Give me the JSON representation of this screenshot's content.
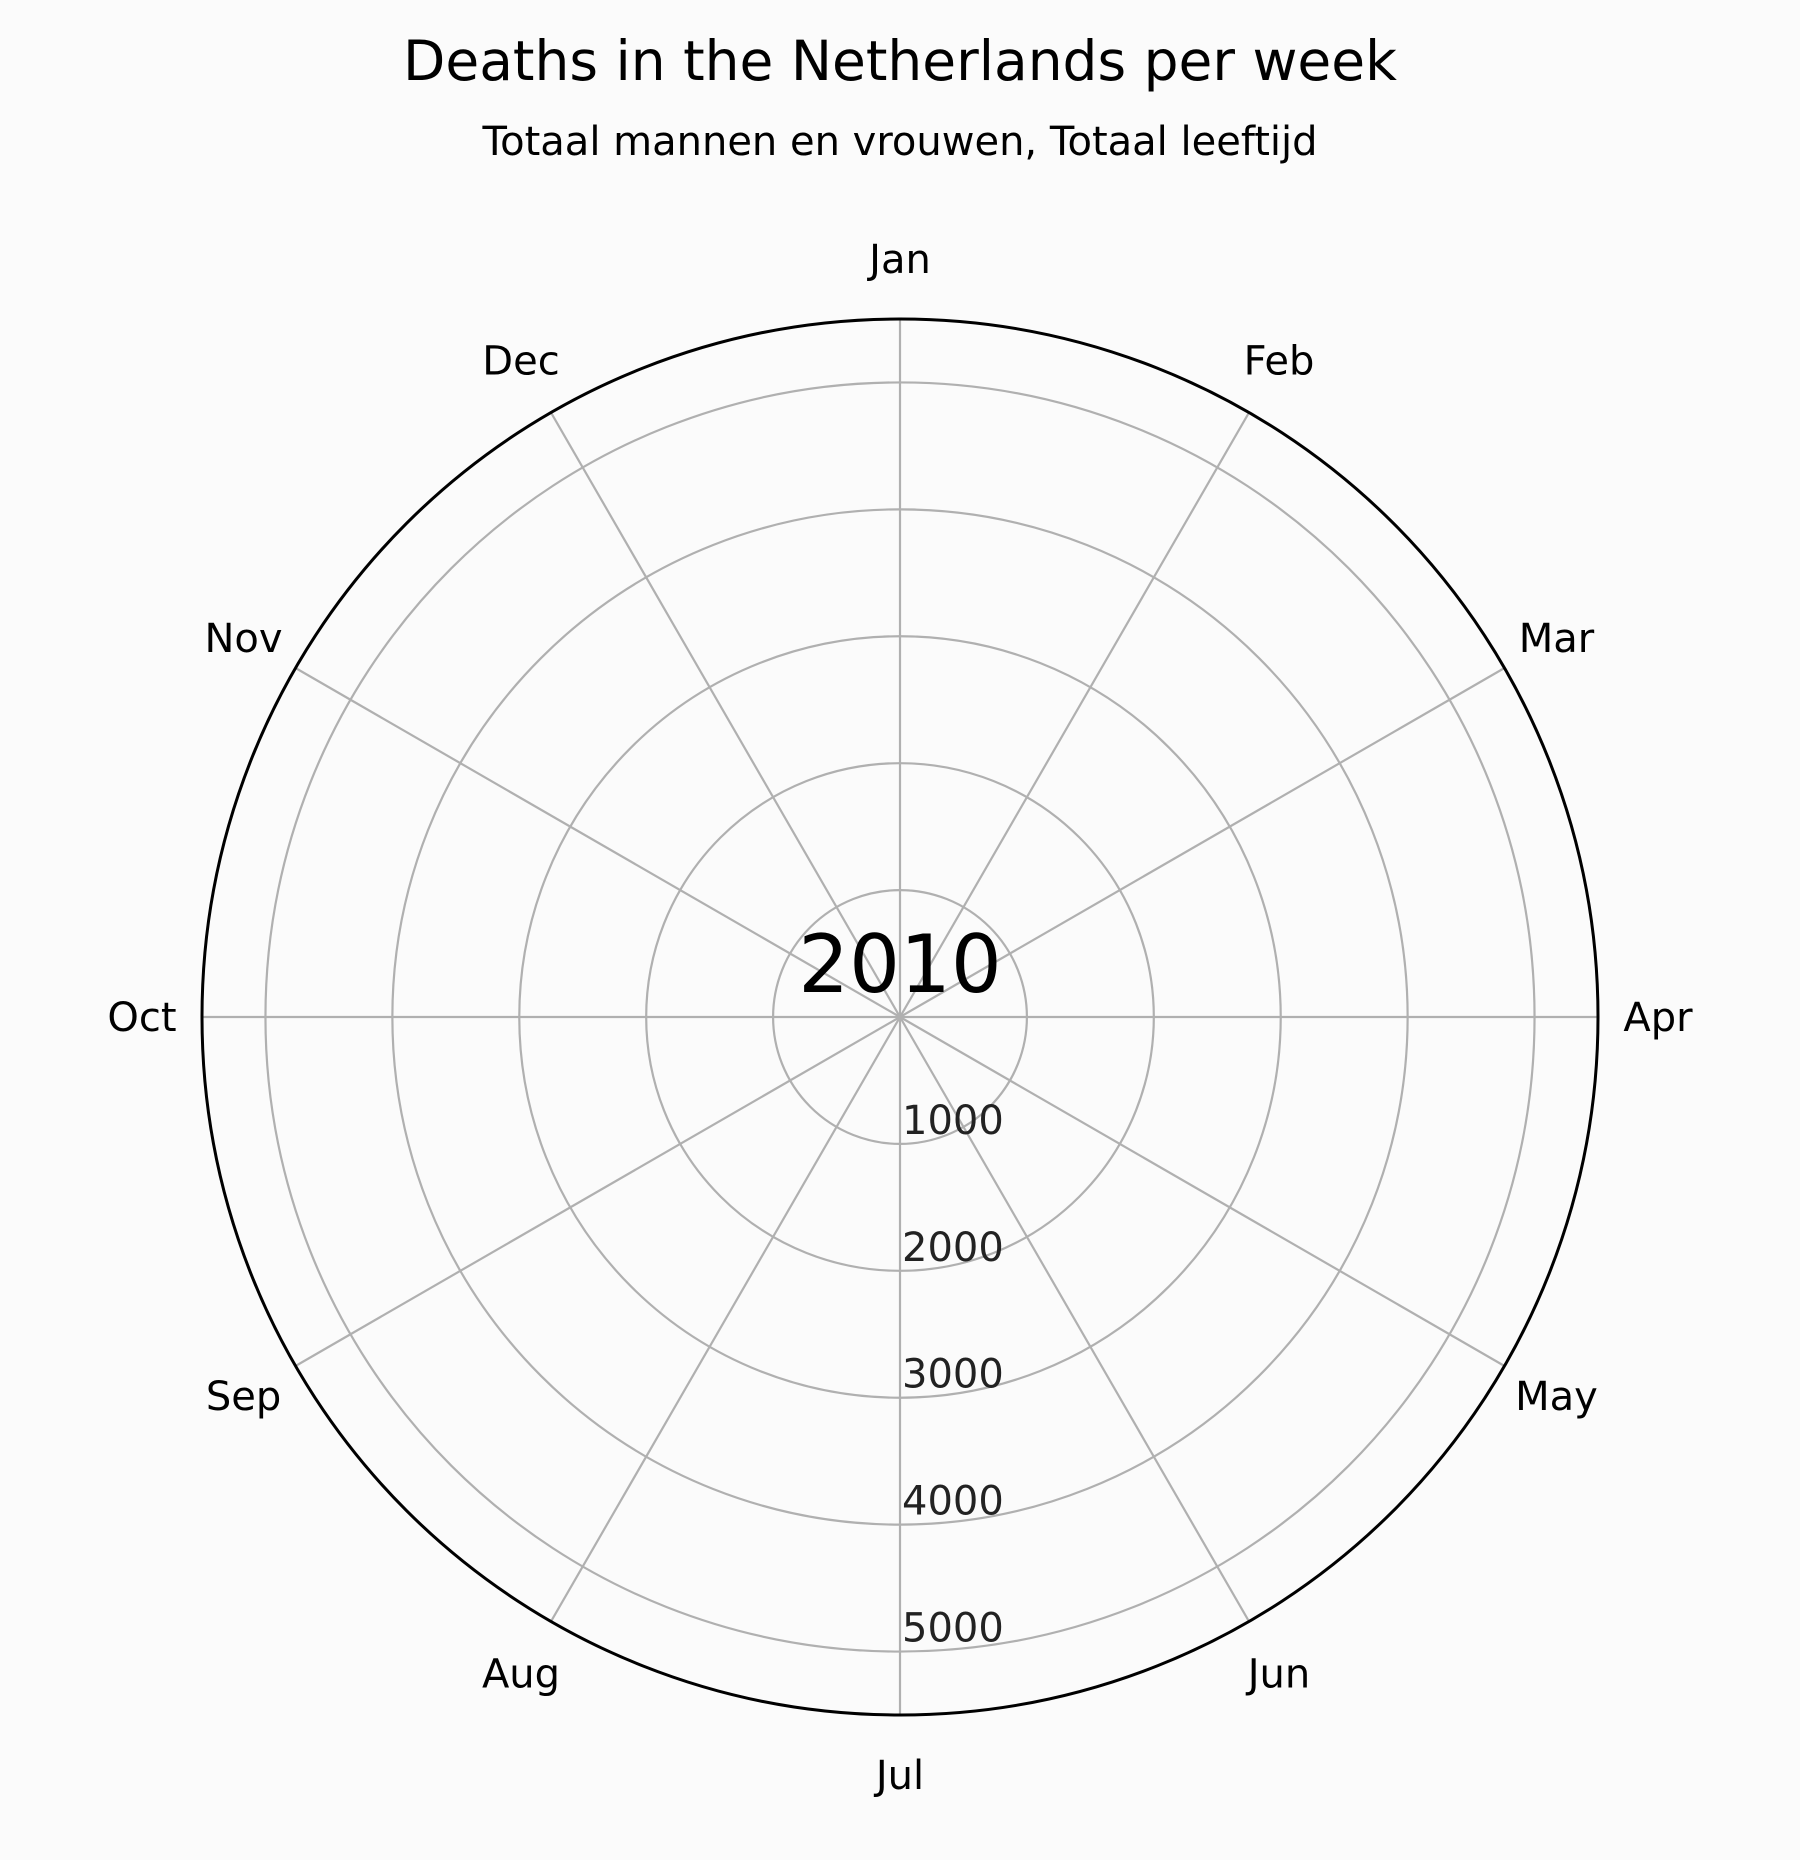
{
  "chart_data": {
    "type": "polar",
    "title": "Deaths in the Netherlands per week",
    "subtitle": "Totaal mannen en vrouwen, Totaal leeftijd",
    "center_label": "2010",
    "theta_labels": [
      "Jan",
      "Feb",
      "Mar",
      "Apr",
      "May",
      "Jun",
      "Jul",
      "Aug",
      "Sep",
      "Oct",
      "Nov",
      "Dec"
    ],
    "theta_direction": "clockwise",
    "theta_zero": "top",
    "r_ticks": [
      1000,
      2000,
      3000,
      4000,
      5000
    ],
    "r_tick_labels": [
      "1000",
      "2000",
      "3000",
      "4000",
      "5000"
    ],
    "r_range": [
      0,
      5500
    ],
    "grid": true,
    "series": []
  },
  "colors": {
    "background": "#fbfbfb",
    "grid": "#b0b0b0",
    "frame": "#000000"
  }
}
